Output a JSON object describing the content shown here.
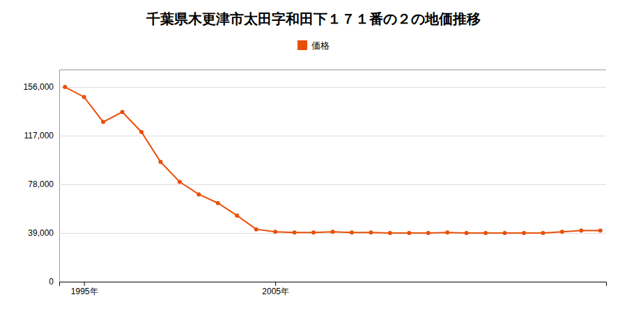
{
  "chart_data": {
    "type": "line",
    "title": "千葉県木更津市太田字和田下１７１番の２の地価推移",
    "x": [
      1994,
      1995,
      1996,
      1997,
      1998,
      1999,
      2000,
      2001,
      2002,
      2003,
      2004,
      2005,
      2006,
      2007,
      2008,
      2009,
      2010,
      2011,
      2012,
      2013,
      2014,
      2015,
      2016,
      2017,
      2018,
      2019,
      2020,
      2021,
      2022
    ],
    "series": [
      {
        "name": "価格",
        "color": "#e8500a",
        "marker": "circle",
        "values": [
          156000,
          148000,
          128000,
          136000,
          120000,
          96000,
          80000,
          70000,
          63000,
          53000,
          42000,
          40000,
          39500,
          39500,
          40000,
          39500,
          39500,
          39000,
          39000,
          39000,
          39500,
          39000,
          39000,
          39000,
          39000,
          39000,
          40000,
          41000,
          41000
        ]
      }
    ],
    "xlim": [
      1993.7,
      2022.3
    ],
    "xticks": [
      {
        "value": 1995,
        "label": "1995年"
      },
      {
        "value": 2005,
        "label": "2005年"
      }
    ],
    "ylim": [
      0,
      170000
    ],
    "yticks": [
      0,
      {
        "value": 39000,
        "label": "39,000"
      },
      {
        "value": 78000,
        "label": "78,000"
      },
      {
        "value": 117000,
        "label": "117,000"
      },
      {
        "value": 156000,
        "label": "156,000"
      }
    ],
    "grid": true,
    "legend": "top"
  }
}
